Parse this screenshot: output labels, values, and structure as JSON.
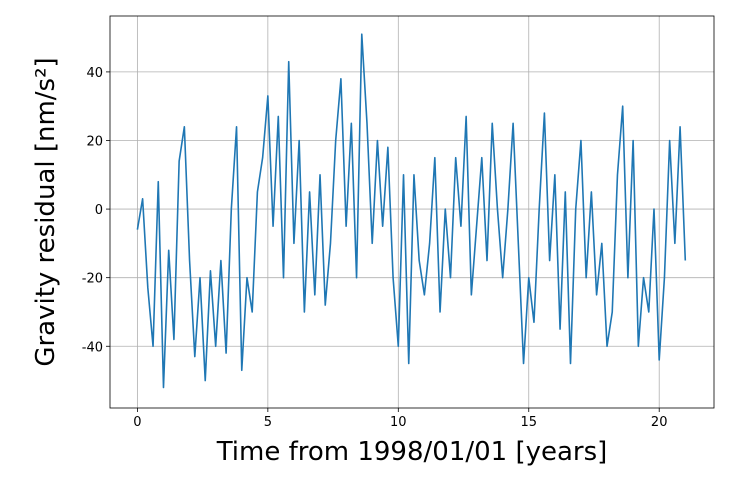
{
  "chart_data": {
    "type": "line",
    "x_label": "Time from 1998/01/01 [years]",
    "y_label": "Gravity residual [nm/s²]",
    "x": [
      0,
      0.2,
      0.4,
      0.6,
      0.8,
      1,
      1.2,
      1.4,
      1.6,
      1.8,
      2,
      2.2,
      2.4,
      2.6,
      2.8,
      3,
      3.2,
      3.4,
      3.6,
      3.8,
      4,
      4.2,
      4.4,
      4.6,
      4.8,
      5,
      5.2,
      5.4,
      5.6,
      5.8,
      6,
      6.2,
      6.4,
      6.6,
      6.8,
      7,
      7.2,
      7.4,
      7.6,
      7.8,
      8,
      8.2,
      8.4,
      8.6,
      8.8,
      9,
      9.2,
      9.4,
      9.6,
      9.8,
      10,
      10.2,
      10.4,
      10.6,
      10.8,
      11,
      11.2,
      11.4,
      11.6,
      11.8,
      12,
      12.2,
      12.4,
      12.6,
      12.8,
      13,
      13.2,
      13.4,
      13.6,
      13.8,
      14,
      14.2,
      14.4,
      14.6,
      14.8,
      15,
      15.2,
      15.4,
      15.6,
      15.8,
      16,
      16.2,
      16.4,
      16.6,
      16.8,
      17,
      17.2,
      17.4,
      17.6,
      17.8,
      18,
      18.2,
      18.4,
      18.6,
      18.8,
      19,
      19.2,
      19.4,
      19.6,
      19.8,
      20,
      20.2,
      20.4,
      20.6,
      20.8,
      21
    ],
    "series": [
      {
        "color": "#1f77b4",
        "values": [
          -6,
          3,
          -23,
          -40,
          8,
          -52,
          -12,
          -38,
          14,
          24,
          -15,
          -43,
          -20,
          -50,
          -18,
          -40,
          -15,
          -42,
          0,
          24,
          -47,
          -20,
          -30,
          5,
          15,
          33,
          -5,
          27,
          -20,
          43,
          -10,
          20,
          -30,
          5,
          -25,
          10,
          -28,
          -10,
          20,
          38,
          -5,
          25,
          -20,
          51,
          25,
          -10,
          20,
          -5,
          18,
          -20,
          -40,
          10,
          -45,
          10,
          -15,
          -25,
          -10,
          15,
          -30,
          0,
          -20,
          15,
          -5,
          27,
          -25,
          -5,
          15,
          -15,
          25,
          0,
          -20,
          0,
          25,
          -10,
          -45,
          -20,
          -33,
          0,
          28,
          -15,
          10,
          -35,
          5,
          -45,
          0,
          20,
          -20,
          5,
          -25,
          -10,
          -40,
          -30,
          10,
          30,
          -20,
          20,
          -40,
          -20,
          -30,
          0,
          -44,
          -20,
          20,
          -10,
          24,
          -15
        ]
      }
    ],
    "xlim": [
      -1.05,
      22.1
    ],
    "ylim": [
      -58,
      56.3
    ],
    "xticks": [
      0,
      5,
      10,
      15,
      20
    ],
    "yticks": [
      -40,
      -20,
      0,
      20,
      40
    ],
    "grid": true
  }
}
